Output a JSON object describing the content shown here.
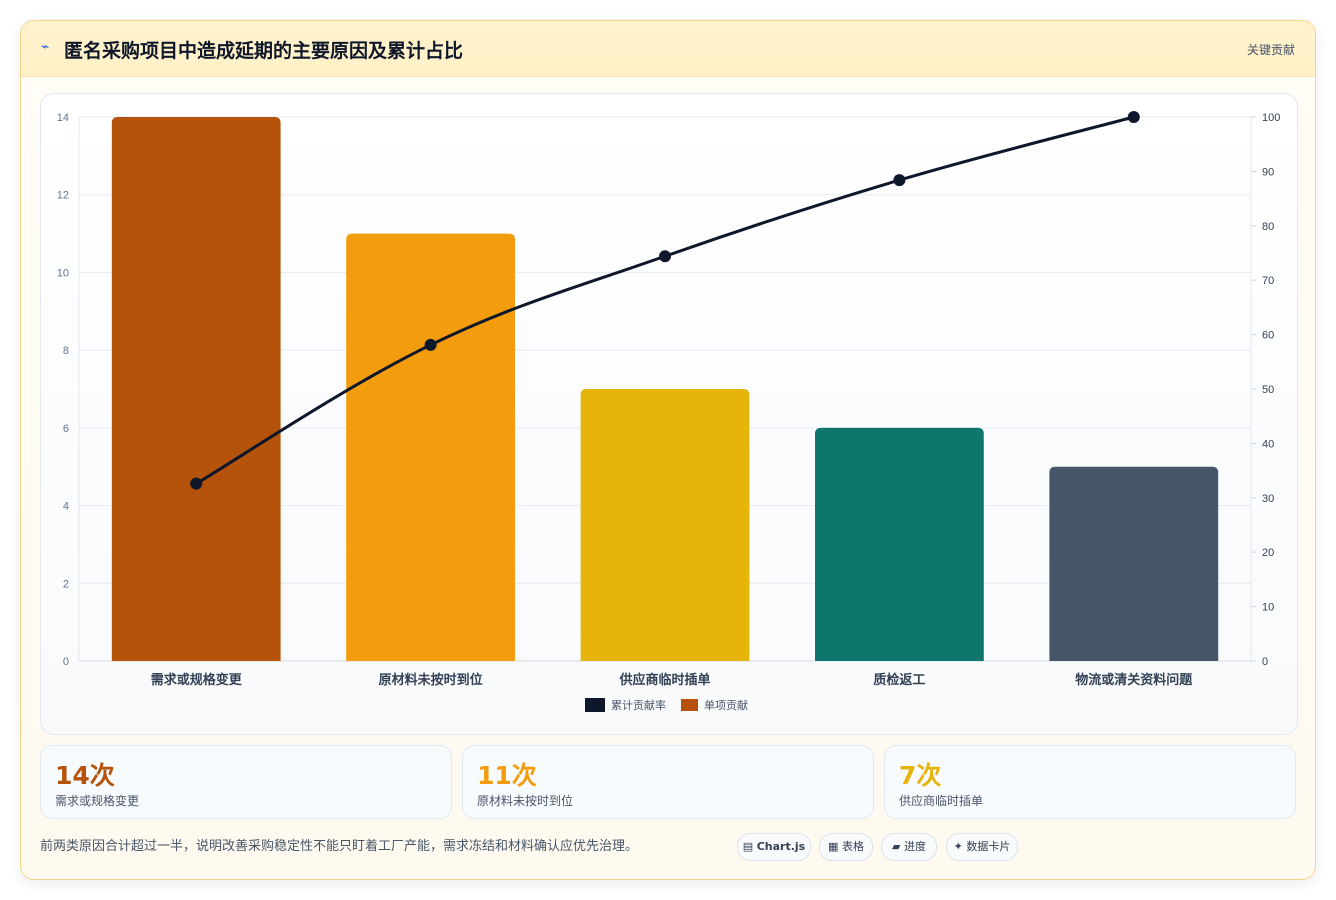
{
  "header": {
    "title": "匿名采购项目中造成延期的主要原因及累计占比",
    "tag": "关键贡献"
  },
  "chart_data": {
    "type": "bar",
    "categories": [
      "需求或规格变更",
      "原材料未按时到位",
      "供应商临时插单",
      "质检返工",
      "物流或清关资料问题"
    ],
    "series": [
      {
        "name": "单项贡献",
        "type": "bar",
        "axis": "left",
        "values": [
          14,
          11,
          7,
          6,
          5
        ]
      },
      {
        "name": "累计贡献率",
        "type": "line",
        "axis": "right",
        "values": [
          32.6,
          58.1,
          74.4,
          88.4,
          100
        ]
      }
    ],
    "ylim": [
      0,
      14
    ],
    "yticks": [
      0,
      2,
      4,
      6,
      8,
      10,
      12,
      14
    ],
    "y2lim": [
      0,
      100
    ],
    "y2ticks": [
      0,
      10,
      20,
      30,
      40,
      50,
      60,
      70,
      80,
      90,
      100
    ],
    "legend_position": "bottom",
    "grid": true,
    "colors": {
      "bars": [
        "#b45309",
        "#f39c0e",
        "#e6b40a",
        "#0f766e",
        "#475569"
      ],
      "line": "#0f172a"
    }
  },
  "stats": [
    {
      "value": "14次",
      "label": "需求或规格变更",
      "color": "#b45309"
    },
    {
      "value": "11次",
      "label": "原材料未按时到位",
      "color": "#f39c0e"
    },
    {
      "value": "7次",
      "label": "供应商临时插单",
      "color": "#e6b40a"
    }
  ],
  "note": "前两类原因合计超过一半，说明改善采购稳定性不能只盯着工厂产能，需求冻结和材料确认应优先治理。",
  "toolbar": [
    {
      "icon": "chart-icon",
      "glyph": "▤",
      "label": "Chart.js"
    },
    {
      "icon": "table-icon",
      "glyph": "▦",
      "label": "表格"
    },
    {
      "icon": "progress-icon",
      "glyph": "▰",
      "label": "进度"
    },
    {
      "icon": "sparkle-icon",
      "glyph": "✦",
      "label": "数据卡片"
    }
  ]
}
